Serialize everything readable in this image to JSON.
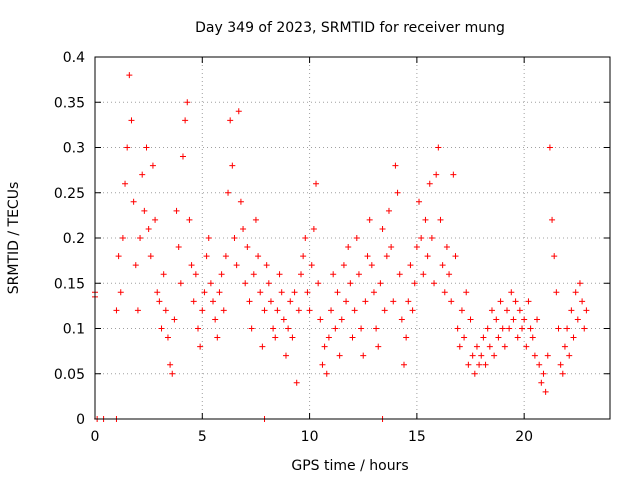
{
  "chart_data": {
    "type": "scatter",
    "title": "Day 349 of 2023, SRMTID for receiver mung",
    "xlabel": "GPS time / hours",
    "ylabel": "SRMTID / TECUs",
    "xlim": [
      0,
      24
    ],
    "ylim": [
      0,
      0.4
    ],
    "grid": true,
    "marker": "+",
    "marker_color": "#ff0000",
    "x_ticks": [
      0,
      5,
      10,
      15,
      20
    ],
    "x_tick_labels": [
      "0",
      "5",
      "10",
      "15",
      "20"
    ],
    "y_ticks": [
      0,
      0.05,
      0.1,
      0.15,
      0.2,
      0.25,
      0.3,
      0.35,
      0.4
    ],
    "y_tick_labels": [
      "0",
      "0.05",
      "0.1",
      "0.15",
      "0.2",
      "0.25",
      "0.3",
      "0.35",
      "0.4"
    ],
    "series": [
      {
        "name": "SRMTID",
        "points": [
          [
            0.0,
            0.14
          ],
          [
            0.0,
            0.135
          ],
          [
            0.1,
            0.0
          ],
          [
            0.4,
            0.0
          ],
          [
            1.0,
            0.0
          ],
          [
            7.9,
            0.0
          ],
          [
            13.4,
            0.0
          ],
          [
            1.0,
            0.12
          ],
          [
            1.1,
            0.18
          ],
          [
            1.2,
            0.14
          ],
          [
            1.3,
            0.2
          ],
          [
            1.4,
            0.26
          ],
          [
            1.5,
            0.3
          ],
          [
            1.6,
            0.38
          ],
          [
            1.7,
            0.33
          ],
          [
            1.8,
            0.24
          ],
          [
            1.9,
            0.17
          ],
          [
            2.0,
            0.12
          ],
          [
            2.1,
            0.2
          ],
          [
            2.2,
            0.27
          ],
          [
            2.3,
            0.23
          ],
          [
            2.4,
            0.3
          ],
          [
            2.5,
            0.21
          ],
          [
            2.6,
            0.18
          ],
          [
            2.7,
            0.28
          ],
          [
            2.8,
            0.22
          ],
          [
            2.9,
            0.14
          ],
          [
            3.0,
            0.13
          ],
          [
            3.1,
            0.1
          ],
          [
            3.2,
            0.16
          ],
          [
            3.3,
            0.12
          ],
          [
            3.4,
            0.09
          ],
          [
            3.5,
            0.06
          ],
          [
            3.6,
            0.05
          ],
          [
            3.7,
            0.11
          ],
          [
            3.8,
            0.23
          ],
          [
            3.9,
            0.19
          ],
          [
            4.0,
            0.15
          ],
          [
            4.1,
            0.29
          ],
          [
            4.2,
            0.33
          ],
          [
            4.3,
            0.35
          ],
          [
            4.4,
            0.22
          ],
          [
            4.5,
            0.17
          ],
          [
            4.6,
            0.13
          ],
          [
            4.7,
            0.16
          ],
          [
            4.8,
            0.1
          ],
          [
            4.9,
            0.08
          ],
          [
            5.0,
            0.12
          ],
          [
            5.1,
            0.14
          ],
          [
            5.2,
            0.18
          ],
          [
            5.3,
            0.2
          ],
          [
            5.4,
            0.15
          ],
          [
            5.5,
            0.13
          ],
          [
            5.6,
            0.11
          ],
          [
            5.7,
            0.09
          ],
          [
            5.8,
            0.14
          ],
          [
            5.9,
            0.16
          ],
          [
            6.0,
            0.12
          ],
          [
            6.1,
            0.18
          ],
          [
            6.2,
            0.25
          ],
          [
            6.3,
            0.33
          ],
          [
            6.4,
            0.28
          ],
          [
            6.5,
            0.2
          ],
          [
            6.6,
            0.17
          ],
          [
            6.7,
            0.34
          ],
          [
            6.8,
            0.24
          ],
          [
            6.9,
            0.21
          ],
          [
            7.0,
            0.15
          ],
          [
            7.1,
            0.19
          ],
          [
            7.2,
            0.13
          ],
          [
            7.3,
            0.1
          ],
          [
            7.4,
            0.16
          ],
          [
            7.5,
            0.22
          ],
          [
            7.6,
            0.18
          ],
          [
            7.7,
            0.14
          ],
          [
            7.8,
            0.08
          ],
          [
            7.9,
            0.12
          ],
          [
            8.0,
            0.17
          ],
          [
            8.1,
            0.15
          ],
          [
            8.2,
            0.13
          ],
          [
            8.3,
            0.1
          ],
          [
            8.4,
            0.09
          ],
          [
            8.5,
            0.12
          ],
          [
            8.6,
            0.16
          ],
          [
            8.7,
            0.14
          ],
          [
            8.8,
            0.11
          ],
          [
            8.9,
            0.07
          ],
          [
            9.0,
            0.1
          ],
          [
            9.1,
            0.13
          ],
          [
            9.2,
            0.09
          ],
          [
            9.3,
            0.14
          ],
          [
            9.4,
            0.04
          ],
          [
            9.5,
            0.12
          ],
          [
            9.6,
            0.16
          ],
          [
            9.7,
            0.18
          ],
          [
            9.8,
            0.2
          ],
          [
            9.9,
            0.14
          ],
          [
            10.0,
            0.12
          ],
          [
            10.1,
            0.17
          ],
          [
            10.2,
            0.21
          ],
          [
            10.3,
            0.26
          ],
          [
            10.4,
            0.15
          ],
          [
            10.5,
            0.11
          ],
          [
            10.6,
            0.06
          ],
          [
            10.7,
            0.08
          ],
          [
            10.8,
            0.05
          ],
          [
            10.9,
            0.09
          ],
          [
            11.0,
            0.12
          ],
          [
            11.1,
            0.16
          ],
          [
            11.2,
            0.1
          ],
          [
            11.3,
            0.14
          ],
          [
            11.4,
            0.07
          ],
          [
            11.5,
            0.11
          ],
          [
            11.6,
            0.17
          ],
          [
            11.7,
            0.13
          ],
          [
            11.8,
            0.19
          ],
          [
            11.9,
            0.15
          ],
          [
            12.0,
            0.09
          ],
          [
            12.1,
            0.12
          ],
          [
            12.2,
            0.2
          ],
          [
            12.3,
            0.16
          ],
          [
            12.4,
            0.1
          ],
          [
            12.5,
            0.07
          ],
          [
            12.6,
            0.13
          ],
          [
            12.7,
            0.18
          ],
          [
            12.8,
            0.22
          ],
          [
            12.9,
            0.17
          ],
          [
            13.0,
            0.14
          ],
          [
            13.1,
            0.1
          ],
          [
            13.2,
            0.08
          ],
          [
            13.3,
            0.15
          ],
          [
            13.4,
            0.21
          ],
          [
            13.5,
            0.12
          ],
          [
            13.6,
            0.18
          ],
          [
            13.7,
            0.23
          ],
          [
            13.8,
            0.19
          ],
          [
            13.9,
            0.13
          ],
          [
            14.0,
            0.28
          ],
          [
            14.1,
            0.25
          ],
          [
            14.2,
            0.16
          ],
          [
            14.3,
            0.11
          ],
          [
            14.4,
            0.06
          ],
          [
            14.5,
            0.09
          ],
          [
            14.6,
            0.13
          ],
          [
            14.7,
            0.17
          ],
          [
            14.8,
            0.12
          ],
          [
            14.9,
            0.15
          ],
          [
            15.0,
            0.19
          ],
          [
            15.1,
            0.24
          ],
          [
            15.2,
            0.2
          ],
          [
            15.3,
            0.16
          ],
          [
            15.4,
            0.22
          ],
          [
            15.5,
            0.18
          ],
          [
            15.6,
            0.26
          ],
          [
            15.7,
            0.2
          ],
          [
            15.8,
            0.15
          ],
          [
            15.9,
            0.27
          ],
          [
            16.0,
            0.3
          ],
          [
            16.1,
            0.22
          ],
          [
            16.2,
            0.17
          ],
          [
            16.3,
            0.14
          ],
          [
            16.4,
            0.19
          ],
          [
            16.5,
            0.16
          ],
          [
            16.6,
            0.13
          ],
          [
            16.7,
            0.27
          ],
          [
            16.8,
            0.18
          ],
          [
            16.9,
            0.1
          ],
          [
            17.0,
            0.08
          ],
          [
            17.1,
            0.12
          ],
          [
            17.2,
            0.09
          ],
          [
            17.3,
            0.14
          ],
          [
            17.4,
            0.06
          ],
          [
            17.5,
            0.11
          ],
          [
            17.6,
            0.07
          ],
          [
            17.7,
            0.05
          ],
          [
            17.8,
            0.08
          ],
          [
            17.9,
            0.06
          ],
          [
            18.0,
            0.07
          ],
          [
            18.1,
            0.09
          ],
          [
            18.2,
            0.06
          ],
          [
            18.3,
            0.1
          ],
          [
            18.4,
            0.08
          ],
          [
            18.5,
            0.12
          ],
          [
            18.6,
            0.07
          ],
          [
            18.7,
            0.11
          ],
          [
            18.8,
            0.09
          ],
          [
            18.9,
            0.13
          ],
          [
            19.0,
            0.1
          ],
          [
            19.1,
            0.08
          ],
          [
            19.2,
            0.12
          ],
          [
            19.3,
            0.1
          ],
          [
            19.4,
            0.14
          ],
          [
            19.5,
            0.11
          ],
          [
            19.6,
            0.13
          ],
          [
            19.7,
            0.09
          ],
          [
            19.8,
            0.12
          ],
          [
            19.9,
            0.1
          ],
          [
            20.0,
            0.11
          ],
          [
            20.1,
            0.08
          ],
          [
            20.2,
            0.13
          ],
          [
            20.3,
            0.1
          ],
          [
            20.4,
            0.09
          ],
          [
            20.5,
            0.07
          ],
          [
            20.6,
            0.11
          ],
          [
            20.7,
            0.06
          ],
          [
            20.8,
            0.04
          ],
          [
            20.9,
            0.05
          ],
          [
            21.0,
            0.03
          ],
          [
            21.1,
            0.07
          ],
          [
            21.2,
            0.3
          ],
          [
            21.3,
            0.22
          ],
          [
            21.4,
            0.18
          ],
          [
            21.5,
            0.14
          ],
          [
            21.6,
            0.1
          ],
          [
            21.7,
            0.06
          ],
          [
            21.8,
            0.05
          ],
          [
            21.9,
            0.08
          ],
          [
            22.0,
            0.1
          ],
          [
            22.1,
            0.07
          ],
          [
            22.2,
            0.12
          ],
          [
            22.3,
            0.09
          ],
          [
            22.4,
            0.14
          ],
          [
            22.5,
            0.11
          ],
          [
            22.6,
            0.15
          ],
          [
            22.7,
            0.13
          ],
          [
            22.8,
            0.1
          ],
          [
            22.9,
            0.12
          ]
        ]
      }
    ]
  }
}
